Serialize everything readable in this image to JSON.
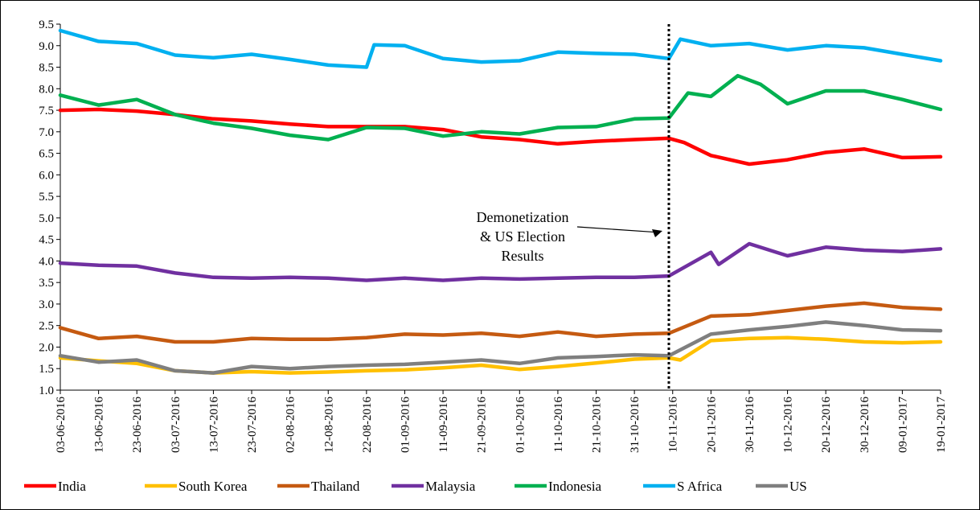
{
  "chart_data": {
    "type": "line",
    "title": "",
    "xlabel": "",
    "ylabel": "",
    "ylim": [
      1.0,
      9.5
    ],
    "ytick_step": 0.5,
    "grid": false,
    "legend_position": "bottom",
    "x_tick_labels": [
      "03-06-2016",
      "13-06-2016",
      "23-06-2016",
      "03-07-2016",
      "13-07-2016",
      "23-07-2016",
      "02-08-2016",
      "12-08-2016",
      "22-08-2016",
      "01-09-2016",
      "11-09-2016",
      "21-09-2016",
      "01-10-2016",
      "11-10-2016",
      "21-10-2016",
      "31-10-2016",
      "10-11-2016",
      "20-11-2016",
      "30-11-2016",
      "10-12-2016",
      "20-12-2016",
      "30-12-2016",
      "09-01-2017",
      "19-01-2017"
    ],
    "annotation": {
      "lines": [
        "Demonetization",
        "& US Election",
        "Results"
      ],
      "marker_date": "09-11-2016"
    },
    "series": [
      {
        "name": "India",
        "color": "#ff0000",
        "points": [
          [
            "03-06-2016",
            7.5
          ],
          [
            "13-06-2016",
            7.52
          ],
          [
            "23-06-2016",
            7.48
          ],
          [
            "03-07-2016",
            7.4
          ],
          [
            "13-07-2016",
            7.3
          ],
          [
            "23-07-2016",
            7.25
          ],
          [
            "02-08-2016",
            7.18
          ],
          [
            "12-08-2016",
            7.12
          ],
          [
            "22-08-2016",
            7.12
          ],
          [
            "01-09-2016",
            7.12
          ],
          [
            "11-09-2016",
            7.05
          ],
          [
            "21-09-2016",
            6.88
          ],
          [
            "01-10-2016",
            6.82
          ],
          [
            "11-10-2016",
            6.72
          ],
          [
            "21-10-2016",
            6.78
          ],
          [
            "31-10-2016",
            6.82
          ],
          [
            "09-11-2016",
            6.85
          ],
          [
            "13-11-2016",
            6.75
          ],
          [
            "20-11-2016",
            6.45
          ],
          [
            "30-11-2016",
            6.25
          ],
          [
            "10-12-2016",
            6.35
          ],
          [
            "20-12-2016",
            6.52
          ],
          [
            "30-12-2016",
            6.6
          ],
          [
            "09-01-2017",
            6.4
          ],
          [
            "19-01-2017",
            6.42
          ]
        ]
      },
      {
        "name": "South Korea",
        "color": "#ffc000",
        "points": [
          [
            "03-06-2016",
            1.75
          ],
          [
            "13-06-2016",
            1.68
          ],
          [
            "23-06-2016",
            1.62
          ],
          [
            "03-07-2016",
            1.45
          ],
          [
            "13-07-2016",
            1.4
          ],
          [
            "23-07-2016",
            1.43
          ],
          [
            "02-08-2016",
            1.4
          ],
          [
            "12-08-2016",
            1.42
          ],
          [
            "22-08-2016",
            1.45
          ],
          [
            "01-09-2016",
            1.47
          ],
          [
            "11-09-2016",
            1.52
          ],
          [
            "21-09-2016",
            1.58
          ],
          [
            "01-10-2016",
            1.48
          ],
          [
            "11-10-2016",
            1.55
          ],
          [
            "21-10-2016",
            1.63
          ],
          [
            "31-10-2016",
            1.72
          ],
          [
            "09-11-2016",
            1.75
          ],
          [
            "12-11-2016",
            1.7
          ],
          [
            "20-11-2016",
            2.15
          ],
          [
            "30-11-2016",
            2.2
          ],
          [
            "10-12-2016",
            2.22
          ],
          [
            "20-12-2016",
            2.18
          ],
          [
            "30-12-2016",
            2.12
          ],
          [
            "09-01-2017",
            2.1
          ],
          [
            "19-01-2017",
            2.12
          ]
        ]
      },
      {
        "name": "Thailand",
        "color": "#c55a11",
        "points": [
          [
            "03-06-2016",
            2.45
          ],
          [
            "13-06-2016",
            2.2
          ],
          [
            "23-06-2016",
            2.25
          ],
          [
            "03-07-2016",
            2.12
          ],
          [
            "13-07-2016",
            2.12
          ],
          [
            "23-07-2016",
            2.2
          ],
          [
            "02-08-2016",
            2.18
          ],
          [
            "12-08-2016",
            2.18
          ],
          [
            "22-08-2016",
            2.22
          ],
          [
            "01-09-2016",
            2.3
          ],
          [
            "11-09-2016",
            2.28
          ],
          [
            "21-09-2016",
            2.32
          ],
          [
            "01-10-2016",
            2.25
          ],
          [
            "11-10-2016",
            2.35
          ],
          [
            "21-10-2016",
            2.25
          ],
          [
            "31-10-2016",
            2.3
          ],
          [
            "09-11-2016",
            2.32
          ],
          [
            "20-11-2016",
            2.72
          ],
          [
            "30-11-2016",
            2.75
          ],
          [
            "10-12-2016",
            2.85
          ],
          [
            "20-12-2016",
            2.95
          ],
          [
            "30-12-2016",
            3.02
          ],
          [
            "09-01-2017",
            2.92
          ],
          [
            "19-01-2017",
            2.88
          ]
        ]
      },
      {
        "name": "Malaysia",
        "color": "#7030a0",
        "points": [
          [
            "03-06-2016",
            3.95
          ],
          [
            "13-06-2016",
            3.9
          ],
          [
            "23-06-2016",
            3.88
          ],
          [
            "03-07-2016",
            3.72
          ],
          [
            "13-07-2016",
            3.62
          ],
          [
            "23-07-2016",
            3.6
          ],
          [
            "02-08-2016",
            3.62
          ],
          [
            "12-08-2016",
            3.6
          ],
          [
            "22-08-2016",
            3.55
          ],
          [
            "01-09-2016",
            3.6
          ],
          [
            "11-09-2016",
            3.55
          ],
          [
            "21-09-2016",
            3.6
          ],
          [
            "01-10-2016",
            3.58
          ],
          [
            "11-10-2016",
            3.6
          ],
          [
            "21-10-2016",
            3.62
          ],
          [
            "31-10-2016",
            3.62
          ],
          [
            "09-11-2016",
            3.65
          ],
          [
            "20-11-2016",
            4.2
          ],
          [
            "22-11-2016",
            3.92
          ],
          [
            "30-11-2016",
            4.4
          ],
          [
            "10-12-2016",
            4.12
          ],
          [
            "20-12-2016",
            4.32
          ],
          [
            "30-12-2016",
            4.25
          ],
          [
            "09-01-2017",
            4.22
          ],
          [
            "19-01-2017",
            4.28
          ]
        ]
      },
      {
        "name": "Indonesia",
        "color": "#00b050",
        "points": [
          [
            "03-06-2016",
            7.85
          ],
          [
            "13-06-2016",
            7.62
          ],
          [
            "23-06-2016",
            7.75
          ],
          [
            "03-07-2016",
            7.4
          ],
          [
            "13-07-2016",
            7.2
          ],
          [
            "23-07-2016",
            7.08
          ],
          [
            "02-08-2016",
            6.92
          ],
          [
            "12-08-2016",
            6.82
          ],
          [
            "22-08-2016",
            7.1
          ],
          [
            "01-09-2016",
            7.08
          ],
          [
            "11-09-2016",
            6.9
          ],
          [
            "21-09-2016",
            7.0
          ],
          [
            "01-10-2016",
            6.95
          ],
          [
            "11-10-2016",
            7.1
          ],
          [
            "21-10-2016",
            7.12
          ],
          [
            "31-10-2016",
            7.3
          ],
          [
            "09-11-2016",
            7.32
          ],
          [
            "14-11-2016",
            7.9
          ],
          [
            "20-11-2016",
            7.82
          ],
          [
            "27-11-2016",
            8.3
          ],
          [
            "03-12-2016",
            8.1
          ],
          [
            "10-12-2016",
            7.65
          ],
          [
            "20-12-2016",
            7.95
          ],
          [
            "30-12-2016",
            7.95
          ],
          [
            "09-01-2017",
            7.75
          ],
          [
            "19-01-2017",
            7.52
          ]
        ]
      },
      {
        "name": "S Africa",
        "color": "#00b0f0",
        "points": [
          [
            "03-06-2016",
            9.35
          ],
          [
            "13-06-2016",
            9.1
          ],
          [
            "23-06-2016",
            9.05
          ],
          [
            "03-07-2016",
            8.78
          ],
          [
            "13-07-2016",
            8.72
          ],
          [
            "23-07-2016",
            8.8
          ],
          [
            "02-08-2016",
            8.68
          ],
          [
            "12-08-2016",
            8.55
          ],
          [
            "22-08-2016",
            8.5
          ],
          [
            "24-08-2016",
            9.02
          ],
          [
            "01-09-2016",
            9.0
          ],
          [
            "11-09-2016",
            8.7
          ],
          [
            "21-09-2016",
            8.62
          ],
          [
            "01-10-2016",
            8.65
          ],
          [
            "11-10-2016",
            8.85
          ],
          [
            "21-10-2016",
            8.82
          ],
          [
            "31-10-2016",
            8.8
          ],
          [
            "09-11-2016",
            8.7
          ],
          [
            "12-11-2016",
            9.15
          ],
          [
            "20-11-2016",
            9.0
          ],
          [
            "30-11-2016",
            9.05
          ],
          [
            "10-12-2016",
            8.9
          ],
          [
            "20-12-2016",
            9.0
          ],
          [
            "30-12-2016",
            8.95
          ],
          [
            "09-01-2017",
            8.8
          ],
          [
            "19-01-2017",
            8.65
          ]
        ]
      },
      {
        "name": "US",
        "color": "#7f7f7f",
        "points": [
          [
            "03-06-2016",
            1.8
          ],
          [
            "13-06-2016",
            1.65
          ],
          [
            "23-06-2016",
            1.7
          ],
          [
            "03-07-2016",
            1.45
          ],
          [
            "13-07-2016",
            1.4
          ],
          [
            "23-07-2016",
            1.55
          ],
          [
            "02-08-2016",
            1.5
          ],
          [
            "12-08-2016",
            1.55
          ],
          [
            "22-08-2016",
            1.58
          ],
          [
            "01-09-2016",
            1.6
          ],
          [
            "11-09-2016",
            1.65
          ],
          [
            "21-09-2016",
            1.7
          ],
          [
            "01-10-2016",
            1.62
          ],
          [
            "11-10-2016",
            1.75
          ],
          [
            "21-10-2016",
            1.78
          ],
          [
            "31-10-2016",
            1.82
          ],
          [
            "09-11-2016",
            1.8
          ],
          [
            "20-11-2016",
            2.3
          ],
          [
            "30-11-2016",
            2.4
          ],
          [
            "10-12-2016",
            2.48
          ],
          [
            "20-12-2016",
            2.58
          ],
          [
            "30-12-2016",
            2.5
          ],
          [
            "09-01-2017",
            2.4
          ],
          [
            "19-01-2017",
            2.38
          ]
        ]
      }
    ]
  }
}
